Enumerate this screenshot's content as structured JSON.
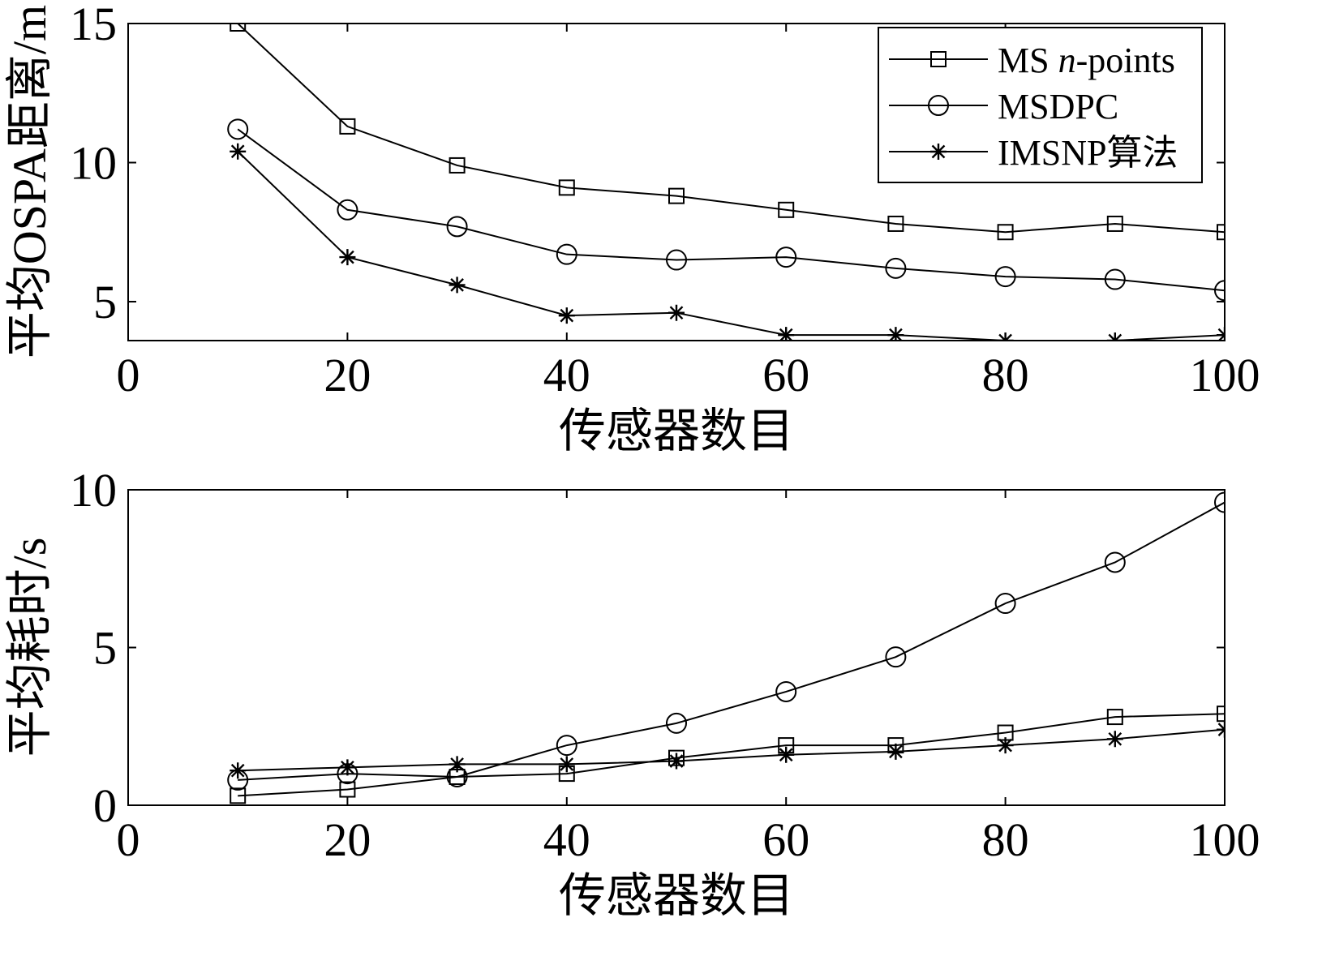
{
  "colors": {
    "line": "#000000",
    "background": "#ffffff"
  },
  "chart_data": [
    {
      "type": "line",
      "xlabel": "传感器数目",
      "ylabel": "平均OSPA距离/m",
      "xlim": [
        0,
        100
      ],
      "ylim": [
        3.6,
        15
      ],
      "xticks": [
        0,
        20,
        40,
        60,
        80,
        100
      ],
      "yticks": [
        5,
        10,
        15
      ],
      "grid": false,
      "legend": "top-right",
      "x": [
        10,
        20,
        30,
        40,
        50,
        60,
        70,
        80,
        90,
        100
      ],
      "series": [
        {
          "name": "MS n-points",
          "name_prefix": "MS ",
          "name_italic": "n",
          "name_suffix": "-points",
          "marker": "square",
          "values": [
            15.0,
            11.3,
            9.9,
            9.1,
            8.8,
            8.3,
            7.8,
            7.5,
            7.8,
            7.5
          ]
        },
        {
          "name": "MSDPC",
          "marker": "circle",
          "values": [
            11.2,
            8.3,
            7.7,
            6.7,
            6.5,
            6.6,
            6.2,
            5.9,
            5.8,
            5.4
          ]
        },
        {
          "name": "IMSNP算法",
          "marker": "star",
          "values": [
            10.4,
            6.6,
            5.6,
            4.5,
            4.6,
            3.8,
            3.8,
            3.6,
            3.6,
            3.8
          ]
        }
      ]
    },
    {
      "type": "line",
      "xlabel": "传感器数目",
      "ylabel": "平均耗时/s",
      "xlim": [
        0,
        100
      ],
      "ylim": [
        0,
        10
      ],
      "xticks": [
        0,
        20,
        40,
        60,
        80,
        100
      ],
      "yticks": [
        0,
        5,
        10
      ],
      "grid": false,
      "x": [
        10,
        20,
        30,
        40,
        50,
        60,
        70,
        80,
        90,
        100
      ],
      "series": [
        {
          "name": "MS n-points",
          "marker": "square",
          "values": [
            0.3,
            0.5,
            0.9,
            1.0,
            1.5,
            1.9,
            1.9,
            2.3,
            2.8,
            2.9
          ]
        },
        {
          "name": "MSDPC",
          "marker": "circle",
          "values": [
            0.8,
            1.0,
            0.9,
            1.9,
            2.6,
            3.6,
            4.7,
            6.4,
            7.7,
            9.6
          ]
        },
        {
          "name": "IMSNP算法",
          "marker": "star",
          "values": [
            1.1,
            1.2,
            1.3,
            1.3,
            1.4,
            1.6,
            1.7,
            1.9,
            2.1,
            2.4
          ]
        }
      ]
    }
  ]
}
